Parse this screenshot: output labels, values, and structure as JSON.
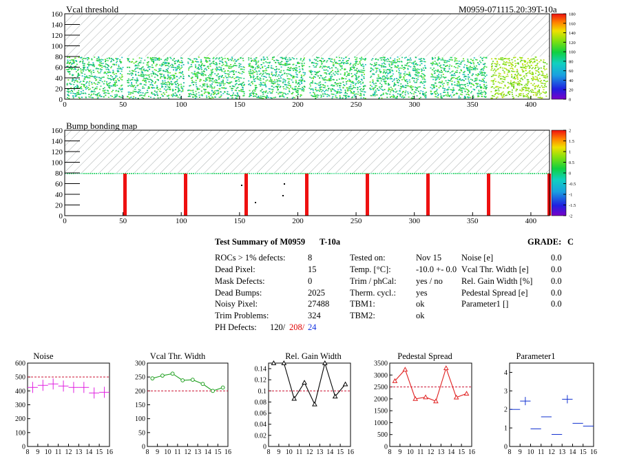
{
  "run_id": "M0959-071115.20:39T-10a",
  "maps": [
    {
      "title": "Vcal threshold",
      "palette_ticks": [
        "180",
        "160",
        "140",
        "120",
        "100",
        "80",
        "60",
        "40",
        "20",
        "0"
      ],
      "x_ticks": [
        "0",
        "50",
        "100",
        "150",
        "200",
        "250",
        "300",
        "350",
        "400"
      ],
      "y_ticks": [
        "0",
        "20",
        "40",
        "60",
        "80",
        "100",
        "120",
        "140",
        "160"
      ]
    },
    {
      "title": "Bump bonding map",
      "palette_ticks": [
        "2",
        "1.5",
        "1",
        "0.5",
        "0",
        "-0.5",
        "-1",
        "-1.5",
        "-2"
      ],
      "x_ticks": [
        "0",
        "50",
        "100",
        "150",
        "200",
        "250",
        "300",
        "350",
        "400"
      ],
      "y_ticks": [
        "0",
        "20",
        "40",
        "60",
        "80",
        "100",
        "120",
        "140",
        "160"
      ]
    }
  ],
  "summary": {
    "heading": "Test Summary of M0959",
    "temp_tag": "T-10a",
    "grade_label": "GRADE:",
    "grade": "C",
    "col1": [
      {
        "label": "ROCs > 1% defects:",
        "value": "8"
      },
      {
        "label": "Dead Pixel:",
        "value": "15"
      },
      {
        "label": "Mask Defects:",
        "value": "0"
      },
      {
        "label": "Dead Bumps:",
        "value": "2025"
      },
      {
        "label": "Noisy Pixel:",
        "value": "27488"
      },
      {
        "label": "Trim Problems:",
        "value": "324"
      }
    ],
    "ph_label": "PH Defects:",
    "ph_values": [
      "120/",
      "208/",
      "24"
    ],
    "col2": [
      {
        "label": "Tested on:",
        "value": "Nov 15"
      },
      {
        "label": "Temp. [°C]:",
        "value": "-10.0 +- 0.0"
      },
      {
        "label": "Trim / phCal:",
        "value": "yes / no"
      },
      {
        "label": "Therm. cycl.:",
        "value": "yes"
      },
      {
        "label": "TBM1:",
        "value": "ok"
      },
      {
        "label": "TBM2:",
        "value": "ok"
      }
    ],
    "col3": [
      {
        "label": "Noise [e]",
        "value": "0.0"
      },
      {
        "label": "Vcal Thr. Width [e]",
        "value": "0.0"
      },
      {
        "label": "Rel. Gain Width [%]",
        "value": "0.0"
      },
      {
        "label": "Pedestal Spread [e]",
        "value": "0.0"
      },
      {
        "label": "Parameter1 []",
        "value": "0.0"
      }
    ]
  },
  "chart_data": [
    {
      "type": "scatter",
      "title": "Noise",
      "x": [
        8.5,
        9.5,
        10.5,
        11.5,
        12.5,
        13.5,
        14.5,
        15.5
      ],
      "values": [
        425,
        440,
        450,
        435,
        425,
        425,
        385,
        390
      ],
      "xlim": [
        8,
        16
      ],
      "ylim": [
        0,
        600
      ],
      "x_ticks": [
        "8",
        "9",
        "10",
        "11",
        "12",
        "13",
        "14",
        "15",
        "16"
      ],
      "y_ticks": [
        "0",
        "100",
        "200",
        "300",
        "400",
        "500",
        "600"
      ],
      "cut": 500,
      "color": "#e020e0",
      "style": "cross"
    },
    {
      "type": "line",
      "title": "Vcal Thr. Width",
      "x": [
        8.5,
        9.5,
        10.5,
        11.5,
        12.5,
        13.5,
        14.5,
        15.5
      ],
      "values": [
        245,
        255,
        262,
        238,
        240,
        225,
        200,
        212
      ],
      "xlim": [
        8,
        16
      ],
      "ylim": [
        0,
        300
      ],
      "x_ticks": [
        "8",
        "9",
        "10",
        "11",
        "12",
        "13",
        "14",
        "15",
        "16"
      ],
      "y_ticks": [
        "0",
        "50",
        "100",
        "150",
        "200",
        "250",
        "300"
      ],
      "cut": 200,
      "color": "#20a020",
      "style": "circle"
    },
    {
      "type": "line",
      "title": "Rel. Gain Width",
      "x": [
        8.5,
        9.5,
        10.5,
        11.5,
        12.5,
        13.5,
        14.5,
        15.5
      ],
      "values": [
        0.15,
        0.15,
        0.086,
        0.115,
        0.076,
        0.15,
        0.09,
        0.112
      ],
      "xlim": [
        8,
        16
      ],
      "ylim": [
        0,
        0.15
      ],
      "x_ticks": [
        "8",
        "9",
        "10",
        "11",
        "12",
        "13",
        "14",
        "15",
        "16"
      ],
      "y_ticks": [
        "0",
        "0.02",
        "0.04",
        "0.06",
        "0.08",
        "0.1",
        "0.12",
        "0.14"
      ],
      "cut": 0.1,
      "color": "#000000",
      "style": "triangle"
    },
    {
      "type": "line",
      "title": "Pedestal Spread",
      "x": [
        8.5,
        9.5,
        10.5,
        11.5,
        12.5,
        13.5,
        14.5,
        15.5
      ],
      "values": [
        2750,
        3230,
        2000,
        2070,
        1900,
        3290,
        2060,
        2220
      ],
      "xlim": [
        8,
        16
      ],
      "ylim": [
        0,
        3500
      ],
      "x_ticks": [
        "8",
        "9",
        "10",
        "11",
        "12",
        "13",
        "14",
        "15",
        "16"
      ],
      "y_ticks": [
        "0",
        "500",
        "1000",
        "1500",
        "2000",
        "2500",
        "3000",
        "3500"
      ],
      "cut": 2500,
      "color": "#e02020",
      "style": "triangle"
    },
    {
      "type": "scatter",
      "title": "Parameter1",
      "x": [
        8.5,
        9.5,
        10.5,
        11.5,
        12.5,
        13.5,
        14.5,
        15.5
      ],
      "values": [
        2.0,
        2.45,
        0.95,
        1.6,
        0.65,
        2.55,
        1.25,
        1.1
      ],
      "xlim": [
        8,
        16
      ],
      "ylim": [
        0,
        4.5
      ],
      "x_ticks": [
        "8",
        "9",
        "10",
        "11",
        "12",
        "13",
        "14",
        "15",
        "16"
      ],
      "y_ticks": [
        "0",
        "1",
        "2",
        "3",
        "4"
      ],
      "cut": null,
      "color": "#1030d0",
      "style": "cross"
    }
  ],
  "colors": {
    "hatch": "#9aa0a0",
    "dead_column": "#ee1010",
    "cut_line": "#cc1030"
  }
}
